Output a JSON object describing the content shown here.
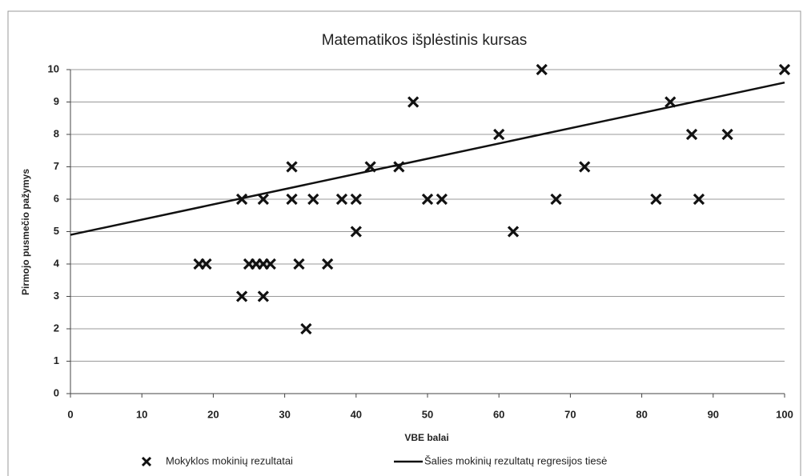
{
  "chart_data": {
    "type": "scatter",
    "title": "Matematikos išplėstinis kursas",
    "xlabel": "VBE balai",
    "ylabel": "Pirmojo pusmečio pažymys",
    "xlim": [
      0,
      100
    ],
    "xticks": [
      0,
      10,
      20,
      30,
      40,
      50,
      60,
      70,
      80,
      90,
      100
    ],
    "ylim": [
      0,
      10
    ],
    "yticks": [
      0,
      1,
      2,
      3,
      4,
      5,
      6,
      7,
      8,
      9,
      10
    ],
    "grid": true,
    "series": [
      {
        "name": "Mokyklos mokinių rezultatai",
        "type": "scatter",
        "color": "#111111",
        "x": [
          18,
          19,
          24,
          24,
          25,
          26,
          27,
          28,
          27,
          27,
          31,
          31,
          32,
          33,
          34,
          36,
          38,
          40,
          40,
          42,
          46,
          48,
          50,
          52,
          60,
          62,
          66,
          68,
          72,
          82,
          84,
          87,
          88,
          92,
          100
        ],
        "values": [
          4,
          4,
          3,
          6,
          4,
          4,
          4,
          4,
          6,
          3,
          7,
          6,
          4,
          2,
          6,
          4,
          6,
          6,
          5,
          7,
          7,
          9,
          6,
          6,
          8,
          5,
          10,
          6,
          7,
          6,
          9,
          8,
          6,
          8,
          10
        ]
      },
      {
        "name": "Šalies mokinių rezultatų regresijos tiesė",
        "type": "line",
        "color": "#111111",
        "x": [
          0,
          100
        ],
        "values": [
          4.9,
          9.6
        ]
      }
    ]
  }
}
